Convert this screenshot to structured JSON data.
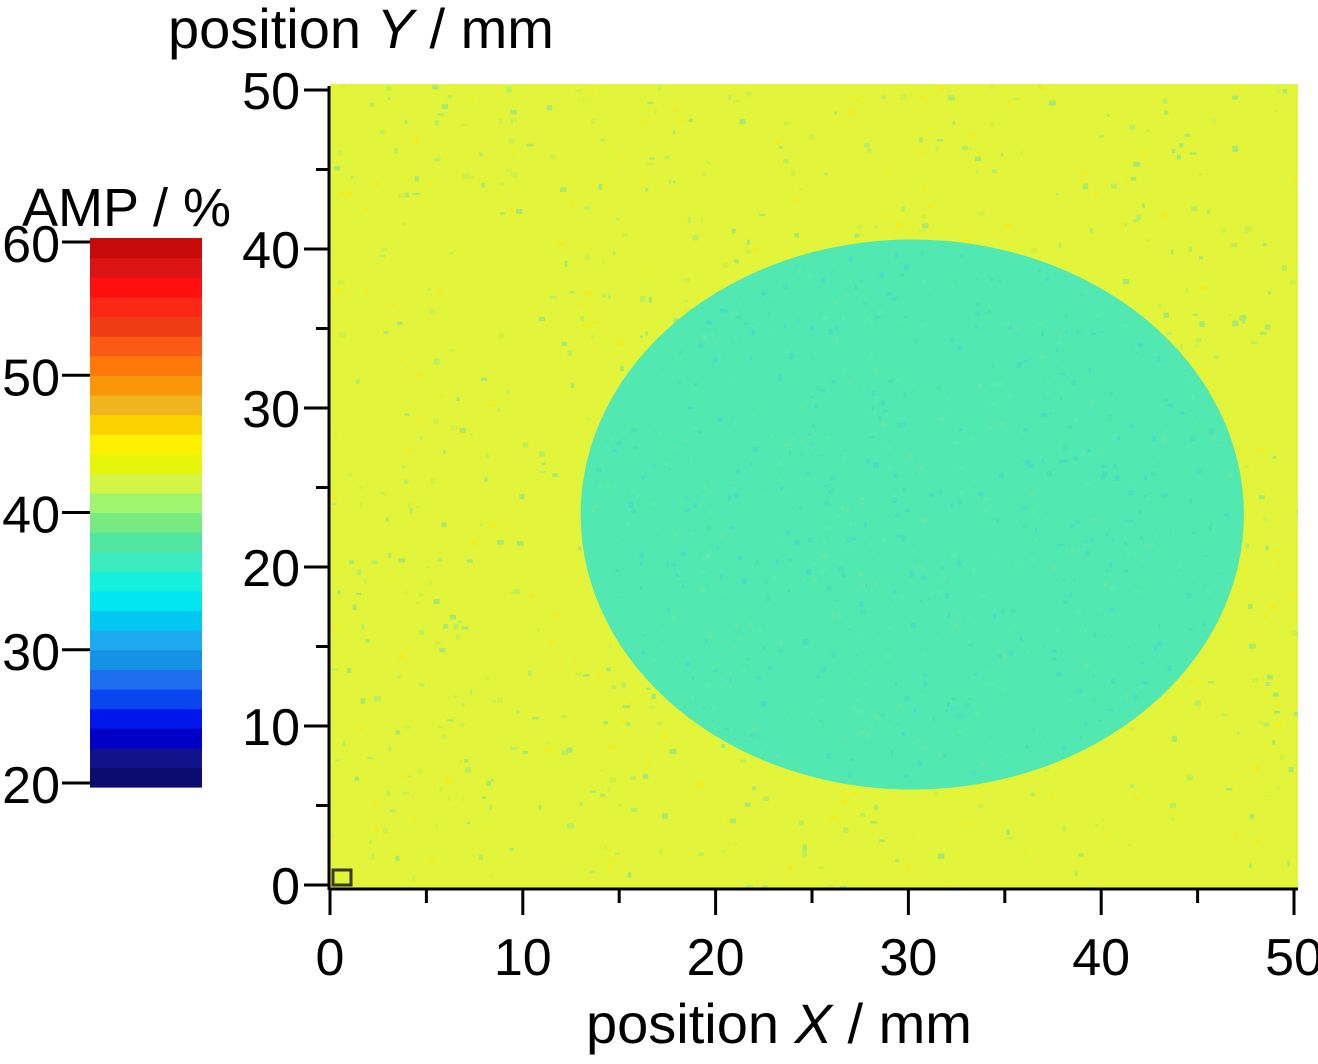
{
  "chart_data": {
    "type": "heatmap",
    "title": "",
    "xlabel": {
      "prefix": "position ",
      "var": "X",
      "suffix": " / mm"
    },
    "ylabel": {
      "prefix": "position ",
      "var": "Y",
      "suffix": " / mm"
    },
    "xlim": [
      0,
      50
    ],
    "ylim": [
      0,
      50
    ],
    "x_ticks": [
      0,
      10,
      20,
      30,
      40,
      50
    ],
    "y_ticks": [
      0,
      10,
      20,
      30,
      40,
      50
    ],
    "x_minor_step": 5,
    "y_minor_step": 5,
    "grid": false,
    "colorbar": {
      "title": "AMP / %",
      "range": [
        20,
        60
      ],
      "ticks": [
        20,
        30,
        40,
        50,
        60
      ],
      "placement": "left",
      "colors": [
        "#0c0c70",
        "#12128c",
        "#0000c8",
        "#0016ea",
        "#0a46ee",
        "#1e6ef0",
        "#1492e6",
        "#1eaaf0",
        "#00c8f0",
        "#00e6f0",
        "#14f0dc",
        "#3cebbe",
        "#50e6a0",
        "#78ea82",
        "#a0f56e",
        "#d2f546",
        "#e6f50a",
        "#fff000",
        "#fad200",
        "#f0b41e",
        "#fa960a",
        "#ff780a",
        "#fa5a14",
        "#f03c14",
        "#fa2814",
        "#ff0f0f",
        "#dc1414",
        "#c80a0a"
      ]
    },
    "background_amplitude": 44,
    "defect_region": {
      "shape": "ellipse",
      "center_x": 30.2,
      "center_y": 23.3,
      "semi_axis_x": 17.2,
      "semi_axis_y": 17.3,
      "amplitude": 37
    },
    "colors": {
      "background": "#e2f53a",
      "defect": "#52e8b2",
      "speckle": [
        "#a8ee70",
        "#c8f04c",
        "#f8ec18",
        "#8ce68a"
      ]
    }
  }
}
